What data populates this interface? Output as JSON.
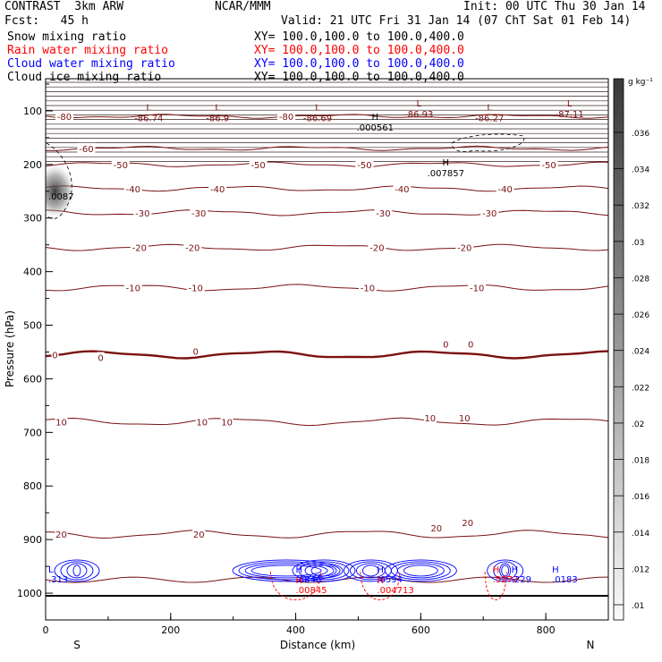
{
  "header": {
    "title": "CONTRAST  3km ARW",
    "center": "NCAR/MMM",
    "init": "Init: 00 UTC Thu 30 Jan 14",
    "fcst": "Fcst:   45 h",
    "valid": "Valid: 21 UTC Fri 31 Jan 14 (07 ChT Sat 01 Feb 14)"
  },
  "legend": [
    {
      "name": "Snow mixing ratio",
      "xy": "XY= 100.0,100.0 to 100.0,400.0",
      "color": "#000000"
    },
    {
      "name": "Rain water mixing ratio",
      "xy": "XY= 100.0,100.0 to 100.0,400.0",
      "color": "#ff0000"
    },
    {
      "name": "Cloud water mixing ratio",
      "xy": "XY= 100.0,100.0 to 100.0,400.0",
      "color": "#0000ff"
    },
    {
      "name": "Cloud ice mixing ratio",
      "xy": "XY= 100.0,100.0 to 100.0,400.0",
      "color": "#000000"
    }
  ],
  "chart_data": {
    "type": "contour",
    "xlabel": "Distance (km)",
    "ylabel": "Pressure (hPa)",
    "xlim": [
      0,
      900
    ],
    "ylim": [
      1050,
      40
    ],
    "xticks": [
      0,
      200,
      400,
      600,
      800
    ],
    "yticks": [
      100,
      200,
      300,
      400,
      500,
      600,
      700,
      800,
      900,
      1000
    ],
    "endpoints": {
      "left": "S",
      "right": "N"
    },
    "colorbar": {
      "unit": "g kg⁻¹",
      "ticks": [
        ".036",
        ".034",
        ".032",
        ".03",
        ".028",
        ".026",
        ".024",
        ".022",
        ".02",
        ".018",
        ".016",
        ".014",
        ".012",
        ".01"
      ]
    },
    "temperature_contours": [
      {
        "level": -80,
        "p": 110
      },
      {
        "level": -60,
        "p": 170
      },
      {
        "level": -50,
        "p": 200
      },
      {
        "level": -40,
        "p": 245
      },
      {
        "level": -30,
        "p": 290
      },
      {
        "level": -20,
        "p": 355
      },
      {
        "level": -10,
        "p": 430
      },
      {
        "level": 0,
        "p": 555
      },
      {
        "level": 10,
        "p": 680
      },
      {
        "level": 20,
        "p": 890
      }
    ],
    "contour_labels": [
      {
        "text": "-80",
        "x": 30,
        "p": 110
      },
      {
        "text": "-80",
        "x": 385,
        "p": 110
      },
      {
        "text": "-60",
        "x": 65,
        "p": 170
      },
      {
        "text": "-50",
        "x": 120,
        "p": 200
      },
      {
        "text": "-50",
        "x": 340,
        "p": 200
      },
      {
        "text": "-50",
        "x": 510,
        "p": 200
      },
      {
        "text": "-50",
        "x": 805,
        "p": 200
      },
      {
        "text": "-40",
        "x": 140,
        "p": 245
      },
      {
        "text": "-40",
        "x": 275,
        "p": 245
      },
      {
        "text": "-40",
        "x": 570,
        "p": 245
      },
      {
        "text": "-40",
        "x": 735,
        "p": 245
      },
      {
        "text": "-30",
        "x": 155,
        "p": 290
      },
      {
        "text": "-30",
        "x": 245,
        "p": 290
      },
      {
        "text": "-30",
        "x": 540,
        "p": 290
      },
      {
        "text": "-30",
        "x": 710,
        "p": 290
      },
      {
        "text": "-20",
        "x": 150,
        "p": 355
      },
      {
        "text": "-20",
        "x": 235,
        "p": 355
      },
      {
        "text": "-20",
        "x": 530,
        "p": 355
      },
      {
        "text": "-20",
        "x": 670,
        "p": 355
      },
      {
        "text": "-10",
        "x": 140,
        "p": 430
      },
      {
        "text": "-10",
        "x": 240,
        "p": 430
      },
      {
        "text": "-10",
        "x": 515,
        "p": 430
      },
      {
        "text": "-10",
        "x": 690,
        "p": 430
      },
      {
        "text": "0",
        "x": 15,
        "p": 555
      },
      {
        "text": "0",
        "x": 88,
        "p": 560
      },
      {
        "text": "0",
        "x": 240,
        "p": 548
      },
      {
        "text": "0",
        "x": 640,
        "p": 535
      },
      {
        "text": "0",
        "x": 680,
        "p": 535
      },
      {
        "text": "10",
        "x": 25,
        "p": 680
      },
      {
        "text": "10",
        "x": 250,
        "p": 680
      },
      {
        "text": "10",
        "x": 290,
        "p": 680
      },
      {
        "text": "10",
        "x": 615,
        "p": 673
      },
      {
        "text": "10",
        "x": 670,
        "p": 673
      },
      {
        "text": "20",
        "x": 25,
        "p": 890
      },
      {
        "text": "20",
        "x": 245,
        "p": 890
      },
      {
        "text": "20",
        "x": 625,
        "p": 878
      },
      {
        "text": "20",
        "x": 675,
        "p": 868
      }
    ],
    "extrema": [
      {
        "type": "L",
        "x": 165,
        "p": 93,
        "value": "-86.74"
      },
      {
        "type": "L",
        "x": 275,
        "p": 93,
        "value": "-86.9"
      },
      {
        "type": "L",
        "x": 435,
        "p": 93,
        "value": "-86.69"
      },
      {
        "type": "L",
        "x": 597,
        "p": 85,
        "value": "-86.93"
      },
      {
        "type": "L",
        "x": 710,
        "p": 93,
        "value": "-86.27"
      },
      {
        "type": "L",
        "x": 838,
        "p": 85,
        "value": "-87.11"
      },
      {
        "type": "H",
        "x": 527,
        "p": 110,
        "value": ".000561"
      },
      {
        "type": "H",
        "x": 640,
        "p": 195,
        "value": ".007857"
      }
    ],
    "marks": [
      {
        "type": "H",
        "x": 400,
        "p": 965,
        "value": ".6846",
        "color": "#0000ff"
      },
      {
        "type": "H",
        "x": 400,
        "p": 985,
        "value": ".00845",
        "color": "#ff0000"
      },
      {
        "type": "H",
        "x": 530,
        "p": 965,
        "value": ".6594",
        "color": "#0000ff"
      },
      {
        "type": "H",
        "x": 530,
        "p": 985,
        "value": ".004713",
        "color": "#ff0000"
      },
      {
        "type": "H",
        "x": 715,
        "p": 965,
        "value": ".5272",
        "color": "#ff0000"
      },
      {
        "type": "H",
        "x": 745,
        "p": 965,
        "value": ".229",
        "color": "#0000ff"
      },
      {
        "type": "H",
        "x": 810,
        "p": 965,
        "value": ".0183",
        "color": "#0000ff"
      },
      {
        "type": "L",
        "x": 0,
        "p": 965,
        "value": ".313",
        "color": "#0000ff"
      },
      {
        "type": "",
        "x": 0,
        "p": 250,
        "value": ".0087",
        "color": "#000000"
      }
    ]
  }
}
